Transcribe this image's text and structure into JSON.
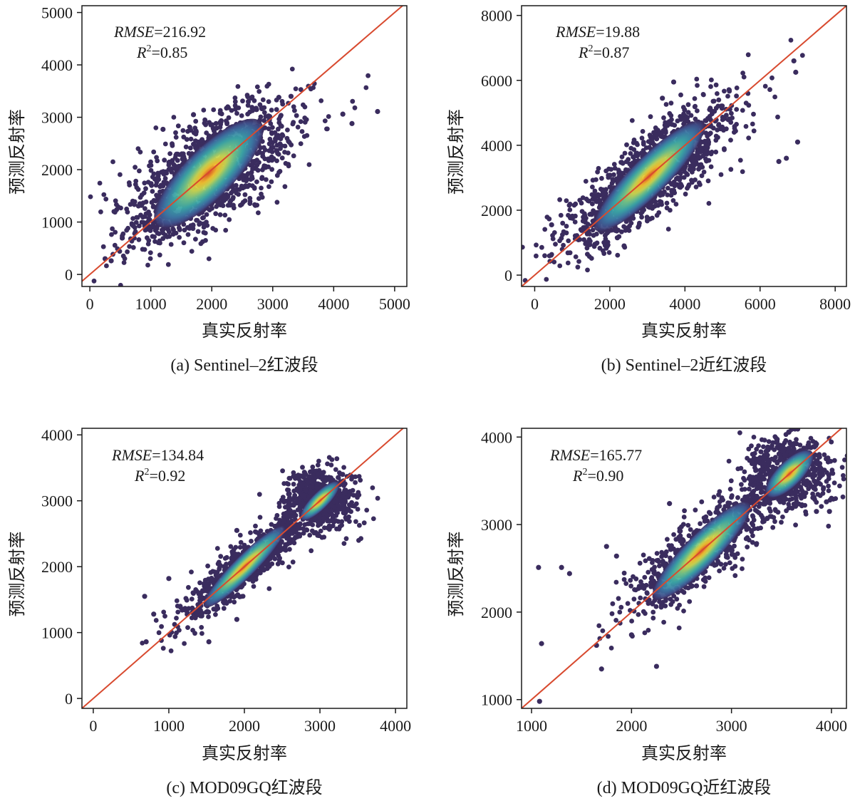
{
  "colors": {
    "line": "#d84a2f",
    "frame": "#1a1a1a",
    "density": [
      "#3a2c5e",
      "#3f4f8a",
      "#3b78a4",
      "#3aa6a6",
      "#6cc28a",
      "#c9d64f",
      "#f2c12e",
      "#e45322"
    ]
  },
  "chart_data": [
    {
      "type": "scatter",
      "subtype": "density-scatter",
      "caption": "(a) Sentinel–2红波段",
      "xlabel": "真实反射率",
      "ylabel": "预测反射率",
      "xlim": [
        -130,
        5200
      ],
      "ylim": [
        -230,
        5130
      ],
      "xticks": [
        0,
        1000,
        2000,
        3000,
        4000,
        5000
      ],
      "yticks": [
        0,
        1000,
        2000,
        3000,
        4000,
        5000
      ],
      "reference_line": "1:1",
      "annotation": {
        "rmse_label": "RMSE",
        "rmse_value": "=216.92",
        "r2_label": "R",
        "r2_sup": "2",
        "r2_value": "=0.85"
      },
      "density_peak": [
        1950,
        1930
      ],
      "cloud_spread": {
        "major": 1600,
        "minor": 430
      },
      "outliers": [
        [
          4720,
          3110
        ],
        [
          4300,
          2880
        ],
        [
          4150,
          3060
        ],
        [
          3300,
          3400
        ],
        [
          3100,
          3380
        ],
        [
          1200,
          2770
        ],
        [
          250,
          300
        ],
        [
          350,
          260
        ],
        [
          2600,
          3300
        ],
        [
          1700,
          3050
        ]
      ]
    },
    {
      "type": "scatter",
      "subtype": "density-scatter",
      "caption": "(b) Sentinel–2近红波段",
      "xlabel": "真实反射率",
      "ylabel": "预测反射率",
      "xlim": [
        -350,
        8300
      ],
      "ylim": [
        -350,
        8300
      ],
      "xticks": [
        0,
        2000,
        4000,
        6000,
        8000
      ],
      "yticks": [
        0,
        2000,
        4000,
        6000,
        8000
      ],
      "reference_line": "1:1",
      "annotation": {
        "rmse_label": "RMSE",
        "rmse_value": "=19.88",
        "r2_label": "R",
        "r2_sup": "2",
        "r2_value": "=0.87"
      },
      "density_peak": [
        3050,
        3050
      ],
      "cloud_spread": {
        "major": 2700,
        "minor": 520
      },
      "outliers": [
        [
          6950,
          6250
        ],
        [
          6900,
          6600
        ],
        [
          3700,
          5950
        ],
        [
          3400,
          5450
        ],
        [
          450,
          1550
        ],
        [
          2380,
          900
        ],
        [
          2200,
          1150
        ],
        [
          7000,
          4100
        ],
        [
          6700,
          3600
        ],
        [
          6500,
          3500
        ]
      ]
    },
    {
      "type": "scatter",
      "subtype": "density-scatter",
      "caption": "(c) MOD09GQ红波段",
      "xlabel": "真实反射率",
      "ylabel": "预测反射率",
      "xlim": [
        -150,
        4150
      ],
      "ylim": [
        -150,
        4100
      ],
      "xticks": [
        0,
        1000,
        2000,
        3000,
        4000
      ],
      "yticks": [
        0,
        1000,
        2000,
        3000,
        4000
      ],
      "reference_line": "1:1",
      "annotation": {
        "rmse_label": "RMSE",
        "rmse_value": "=134.84",
        "r2_label": "R",
        "r2_sup": "2",
        "r2_value": "=0.92"
      },
      "density_peak": [
        2000,
        2000
      ],
      "density_peak_2": [
        3000,
        3000
      ],
      "cloud_spread": {
        "major": 1000,
        "minor": 150
      },
      "outliers": [
        [
          680,
          1550
        ],
        [
          700,
          860
        ],
        [
          1530,
          860
        ],
        [
          1000,
          1820
        ],
        [
          1900,
          2550
        ],
        [
          1900,
          1200
        ],
        [
          3300,
          3400
        ],
        [
          3400,
          3100
        ],
        [
          800,
          1280
        ]
      ]
    },
    {
      "type": "scatter",
      "subtype": "density-scatter",
      "caption": "(d) MOD09GQ近红波段",
      "xlabel": "真实反射率",
      "ylabel": "预测反射率",
      "xlim": [
        900,
        4150
      ],
      "ylim": [
        900,
        4100
      ],
      "xticks": [
        1000,
        2000,
        3000,
        4000
      ],
      "yticks": [
        1000,
        2000,
        3000,
        4000
      ],
      "reference_line": "1:1",
      "annotation": {
        "rmse_label": "RMSE",
        "rmse_value": "=165.77",
        "r2_label": "R",
        "r2_sup": "2",
        "r2_value": "=0.90"
      },
      "density_peak": [
        2700,
        2700
      ],
      "density_peak_2": [
        3580,
        3580
      ],
      "cloud_spread": {
        "major": 900,
        "minor": 170
      },
      "outliers": [
        [
          1080,
          980
        ],
        [
          1100,
          1640
        ],
        [
          1070,
          2510
        ],
        [
          1300,
          2510
        ],
        [
          1380,
          2440
        ],
        [
          1700,
          1350
        ],
        [
          1750,
          2750
        ],
        [
          1850,
          2640
        ],
        [
          2000,
          1740
        ],
        [
          2250,
          1380
        ],
        [
          2380,
          3240
        ],
        [
          2650,
          2300
        ],
        [
          3920,
          3420
        ],
        [
          3950,
          3260
        ],
        [
          3980,
          3150
        ],
        [
          4000,
          3300
        ],
        [
          3850,
          3150
        ],
        [
          1650,
          1620
        ]
      ]
    }
  ]
}
